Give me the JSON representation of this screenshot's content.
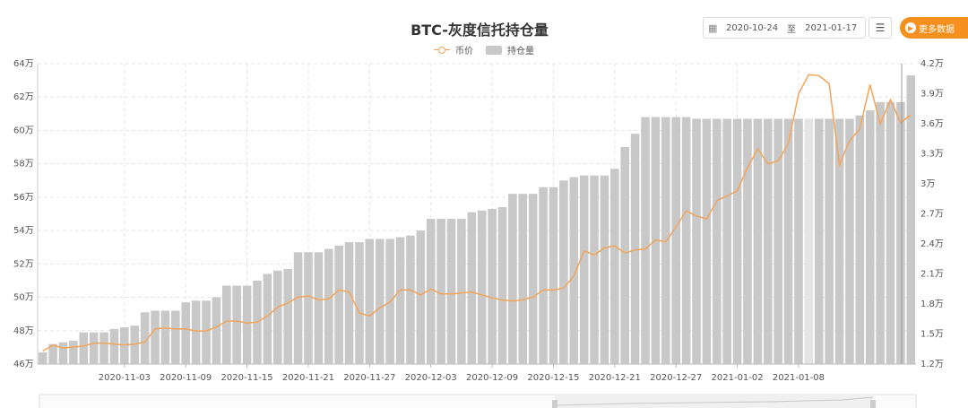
{
  "header": {
    "title": "BTC-灰度信托持仓量",
    "date_from": "2020-10-24",
    "date_sep": "至",
    "date_to": "2021-01-17",
    "more_label": "更多数据",
    "calendar_icon": "calendar-icon",
    "menu_icon": "menu-icon"
  },
  "legend": {
    "price": "币价",
    "holding": "持仓量"
  },
  "colors": {
    "bar": "#c8c8c8",
    "bar_highlight": "#e4e4e4",
    "price_line": "#f3a45a",
    "accent": "#f5901e",
    "grid": "#e6e6e6"
  },
  "chart_data": {
    "type": "bar",
    "left_axis": {
      "ylim": [
        460000,
        640000
      ],
      "ticks": [
        460000,
        480000,
        500000,
        520000,
        540000,
        560000,
        580000,
        600000,
        620000,
        640000
      ],
      "tick_labels": [
        "46万",
        "48万",
        "50万",
        "52万",
        "54万",
        "56万",
        "58万",
        "60万",
        "62万",
        "64万"
      ]
    },
    "right_axis": {
      "ylim": [
        12000,
        42000
      ],
      "ticks": [
        12000,
        15000,
        18000,
        21000,
        24000,
        27000,
        30000,
        33000,
        36000,
        39000,
        42000
      ],
      "tick_labels": [
        "1.2万",
        "1.5万",
        "1.8万",
        "2.1万",
        "2.4万",
        "2.7万",
        "3万",
        "3.3万",
        "3.6万",
        "3.9万",
        "4.2万"
      ]
    },
    "x_tick_labels": [
      "2020-11-03",
      "2020-11-09",
      "2020-11-15",
      "2020-11-21",
      "2020-11-27",
      "2020-12-03",
      "2020-12-09",
      "2020-12-15",
      "2020-12-21",
      "2020-12-27",
      "2021-01-02",
      "2021-01-08"
    ],
    "x_tick_indices": [
      8,
      14,
      20,
      26,
      32,
      38,
      44,
      50,
      56,
      62,
      68,
      74
    ],
    "highlight_index": 75,
    "series": [
      {
        "name": "持仓量",
        "type": "bar",
        "values": [
          467000,
          472000,
          473000,
          474000,
          479000,
          479000,
          479000,
          481000,
          482000,
          483000,
          491000,
          492000,
          492000,
          492000,
          497000,
          498000,
          498000,
          500000,
          507000,
          507000,
          507000,
          510000,
          514000,
          516000,
          517000,
          527000,
          527000,
          527000,
          529000,
          531000,
          533000,
          533000,
          535000,
          535000,
          535000,
          536000,
          537000,
          540000,
          547000,
          547000,
          547000,
          547000,
          551000,
          552000,
          553000,
          554000,
          562000,
          562000,
          562000,
          566000,
          566000,
          570000,
          572000,
          573000,
          573000,
          573000,
          577000,
          590000,
          598000,
          608000,
          608000,
          608000,
          608000,
          608000,
          607000,
          607000,
          607000,
          607000,
          607000,
          607000,
          607000,
          607000,
          607000,
          607000,
          607000,
          607000,
          607000,
          607000,
          607000,
          607000,
          609000,
          612000,
          617000,
          617000,
          617000,
          633000
        ]
      },
      {
        "name": "币价",
        "type": "line",
        "values": [
          13300,
          13900,
          13600,
          13700,
          13800,
          14100,
          14100,
          14000,
          13900,
          14000,
          14200,
          15500,
          15600,
          15500,
          15500,
          15300,
          15300,
          15700,
          16300,
          16300,
          16100,
          16200,
          16800,
          17700,
          18100,
          18700,
          18800,
          18400,
          18500,
          19400,
          19200,
          17100,
          16800,
          17600,
          18200,
          19400,
          19400,
          18900,
          19500,
          19000,
          19000,
          19100,
          19200,
          18900,
          18600,
          18400,
          18300,
          18400,
          18700,
          19400,
          19400,
          19600,
          20800,
          23300,
          22900,
          23600,
          23800,
          23100,
          23400,
          23500,
          24400,
          24200,
          25700,
          27300,
          26800,
          26500,
          28300,
          28800,
          29300,
          31600,
          33500,
          32000,
          32300,
          34000,
          39000,
          40900,
          40800,
          40000,
          31900,
          34300,
          35500,
          39900,
          36000,
          38400,
          36100,
          36900
        ]
      }
    ]
  }
}
